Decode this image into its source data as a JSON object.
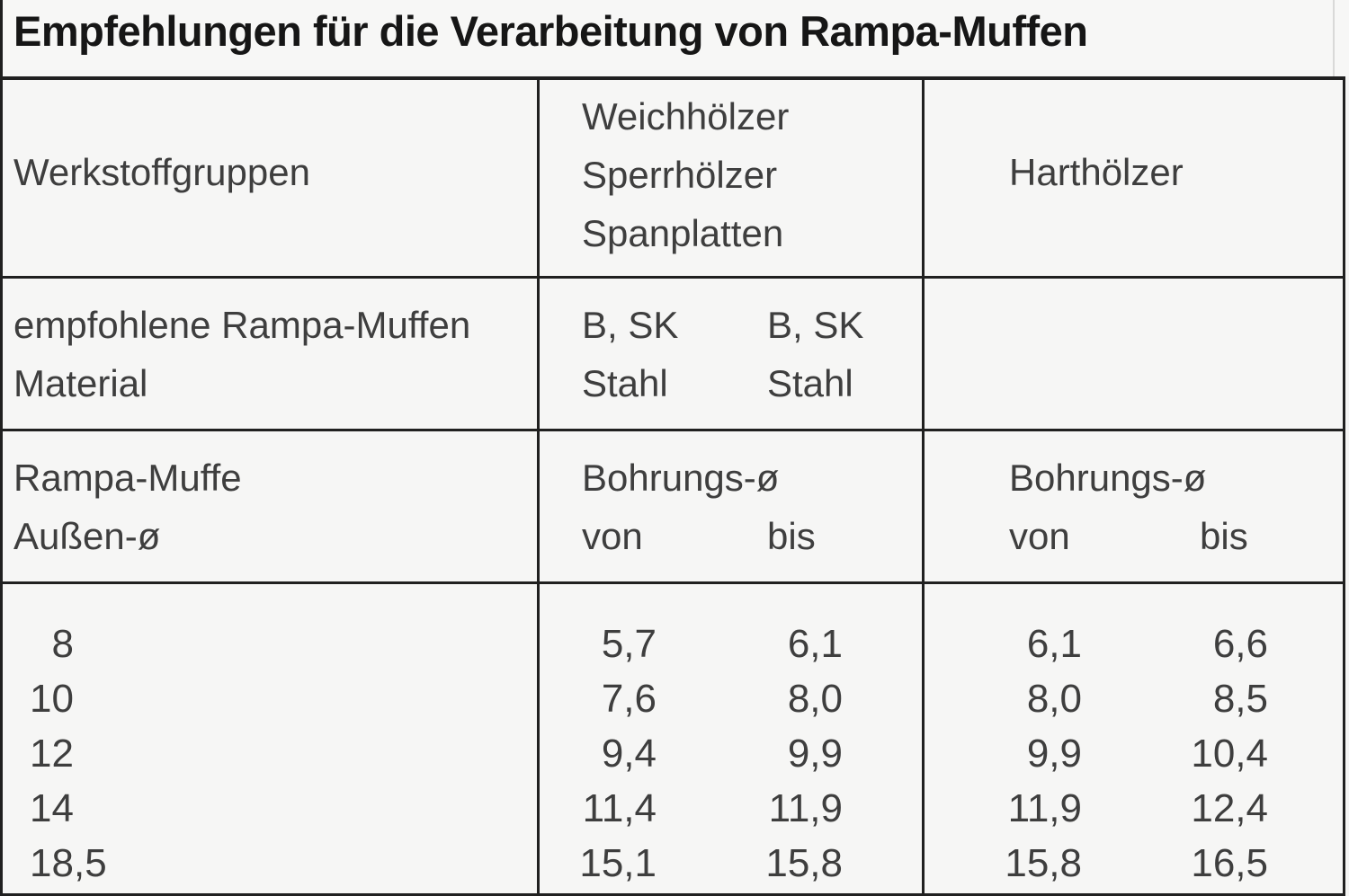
{
  "document": {
    "title": "Empfehlungen für die Verarbeitung von Rampa-Muffen",
    "table": {
      "headers": {
        "col1": "Werkstoffgruppen",
        "col2_line1": "Weichhölzer",
        "col2_line2": "Sperrhölzer",
        "col2_line3": "Spanplatten",
        "col3": "Harthölzer"
      },
      "material_row": {
        "label_line1": "empfohlene Rampa-Muffen",
        "label_line2": "Material",
        "soft_a_line1": "B, SK",
        "soft_a_line2": "Stahl",
        "soft_b_line1": "B, SK",
        "soft_b_line2": "Stahl"
      },
      "bore_row": {
        "label_line1": "Rampa-Muffe",
        "label_line2": "Außen-ø",
        "soft_title": "Bohrungs-ø",
        "soft_from_label": "von",
        "soft_to_label": "bis",
        "hard_title": "Bohrungs-ø",
        "hard_from_label": "von",
        "hard_to_label": "bis"
      },
      "data_rows": [
        {
          "outer_int": "8",
          "outer_frac": "",
          "soft_von": "5,7",
          "soft_bis": "6,1",
          "hard_von": "6,1",
          "hard_bis": "6,6"
        },
        {
          "outer_int": "10",
          "outer_frac": "",
          "soft_von": "7,6",
          "soft_bis": "8,0",
          "hard_von": "8,0",
          "hard_bis": "8,5"
        },
        {
          "outer_int": "12",
          "outer_frac": "",
          "soft_von": "9,4",
          "soft_bis": "9,9",
          "hard_von": "9,9",
          "hard_bis": "10,4"
        },
        {
          "outer_int": "14",
          "outer_frac": "",
          "soft_von": "11,4",
          "soft_bis": "11,9",
          "hard_von": "11,9",
          "hard_bis": "12,4"
        },
        {
          "outer_int": "18",
          "outer_frac": ",5",
          "soft_von": "15,1",
          "soft_bis": "15,8",
          "hard_von": "15,8",
          "hard_bis": "16,5"
        }
      ]
    }
  }
}
